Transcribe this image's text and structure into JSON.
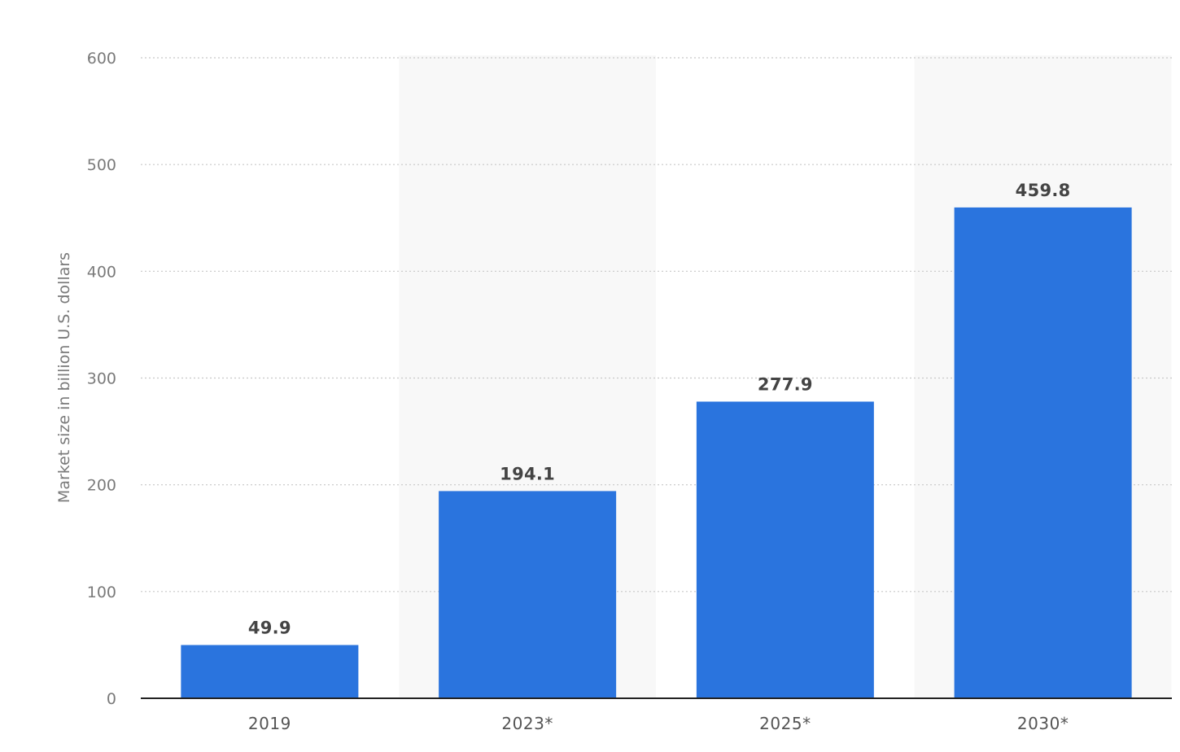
{
  "chart_data": {
    "type": "bar",
    "categories": [
      "2019",
      "2023*",
      "2025*",
      "2030*"
    ],
    "values": [
      49.9,
      194.1,
      277.9,
      459.8
    ],
    "value_labels": [
      "49.9",
      "194.1",
      "277.9",
      "459.8"
    ],
    "title": "",
    "xlabel": "",
    "ylabel": "Market size in billion U.S. dollars",
    "ylim": [
      0,
      600
    ],
    "yticks": [
      0,
      100,
      200,
      300,
      400,
      500,
      600
    ],
    "grid": true,
    "legend": "none",
    "colors": {
      "bar": "#2a74de",
      "band": "#f8f8f8",
      "grid": "#c8c8c8",
      "axis": "#222222"
    }
  }
}
